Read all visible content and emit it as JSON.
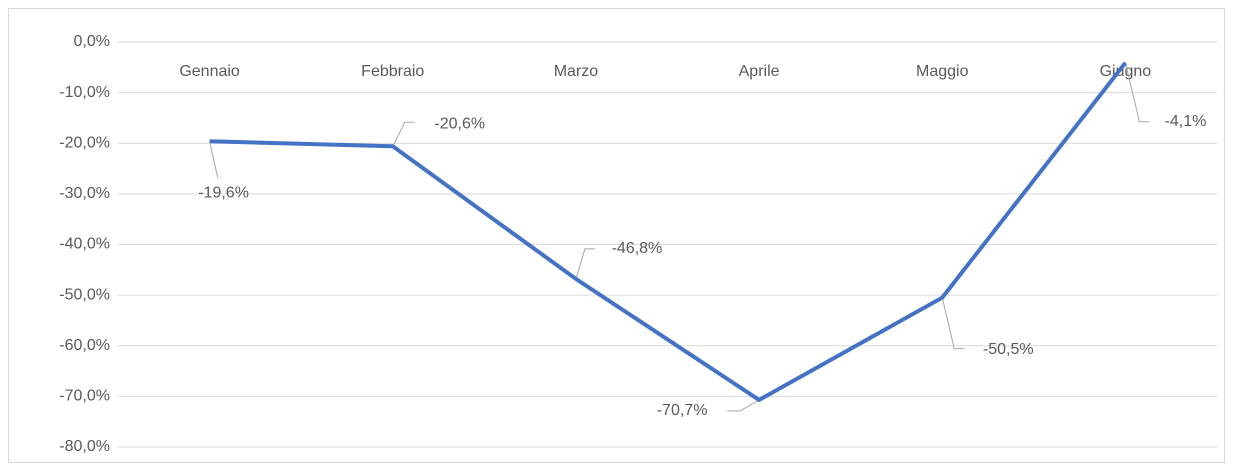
{
  "chart_data": {
    "type": "line",
    "categories": [
      "Gennaio",
      "Febbraio",
      "Marzo",
      "Aprile",
      "Maggio",
      "Giugno"
    ],
    "values": [
      -19.6,
      -20.6,
      -46.8,
      -70.7,
      -50.5,
      -4.1
    ],
    "value_labels": [
      "-19,6%",
      "-20,6%",
      "-46,8%",
      "-70,7%",
      "-50,5%",
      "-4,1%"
    ],
    "color": "#4472c4",
    "ylim": [
      -80,
      0
    ],
    "yticks": [
      {
        "value": 0,
        "label": "0,0%"
      },
      {
        "value": -10,
        "label": "-10,0%"
      },
      {
        "value": -20,
        "label": "-20,0%"
      },
      {
        "value": -30,
        "label": "-30,0%"
      },
      {
        "value": -40,
        "label": "-40,0%"
      },
      {
        "value": -50,
        "label": "-50,0%"
      },
      {
        "value": -60,
        "label": "-60,0%"
      },
      {
        "value": -70,
        "label": "-70,0%"
      },
      {
        "value": -80,
        "label": "-80,0%"
      }
    ],
    "grid": true
  }
}
